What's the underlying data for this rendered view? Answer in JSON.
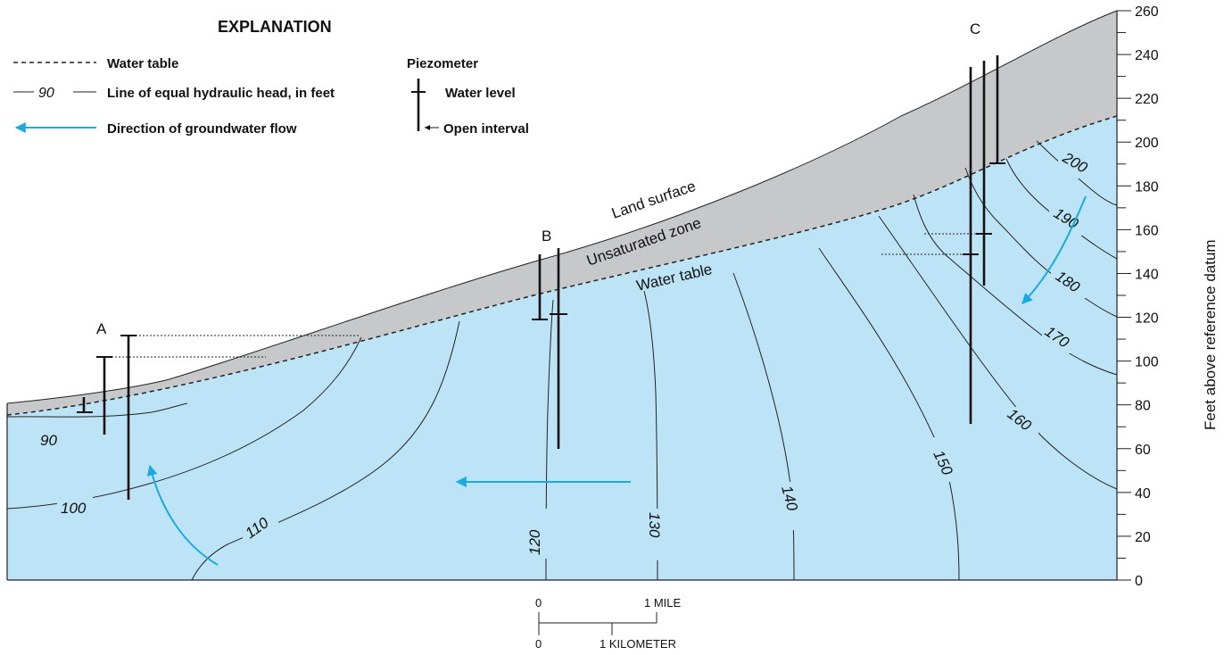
{
  "legend": {
    "title": "EXPLANATION",
    "water_table": "Water table",
    "head_sample": "90",
    "equal_head": "Line of equal hydraulic head, in feet",
    "flow": "Direction of groundwater flow",
    "piezometer": "Piezometer",
    "water_level": "Water level",
    "open_interval": "Open interval"
  },
  "labels": {
    "land_surface": "Land surface",
    "unsaturated_zone": "Unsaturated zone",
    "water_table": "Water table"
  },
  "sites": {
    "a": "A",
    "b": "B",
    "c": "C"
  },
  "axis": {
    "title": "Feet above reference datum",
    "ticks": [
      "260",
      "240",
      "220",
      "200",
      "180",
      "160",
      "140",
      "120",
      "100",
      "80",
      "60",
      "40",
      "20",
      "0"
    ]
  },
  "contours": [
    "90",
    "100",
    "110",
    "120",
    "130",
    "140",
    "150",
    "160",
    "170",
    "180",
    "190",
    "200"
  ],
  "scale_bar": {
    "mile_zero": "0",
    "mile": "1 MILE",
    "km_zero": "0",
    "km": "1 KILOMETER"
  },
  "colors": {
    "saturated": "#bde4f6",
    "unsaturated": "#c7c8ca",
    "flow_arrow": "#1aa9e0"
  }
}
